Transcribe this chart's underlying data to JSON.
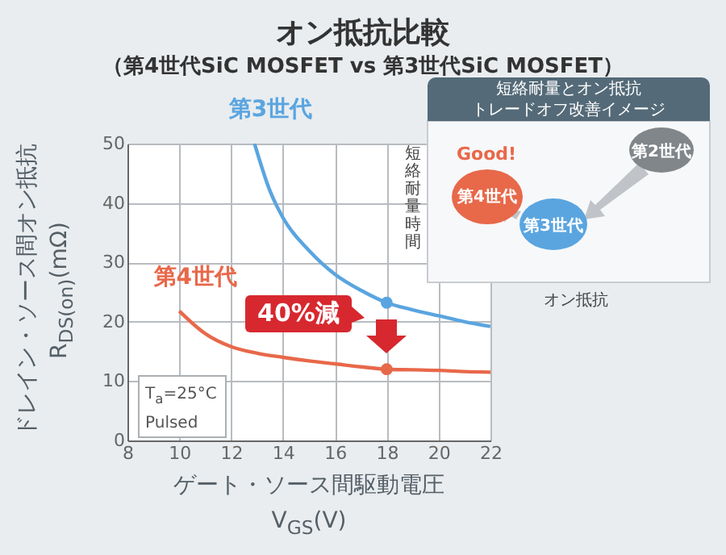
{
  "chart_data": {
    "type": "line",
    "title": "オン抵抗比較",
    "subtitle": "（第4世代SiC MOSFET vs 第3世代SiC MOSFET）",
    "xlabel": "ゲート・ソース間駆動電圧\nV$_{GS}$(V)",
    "ylabel": "ドレイン・ソース間オン抵抗\nR$_{DS(on)}$(mΩ)",
    "xlim": [
      8,
      22
    ],
    "xticks": [
      8,
      10,
      12,
      14,
      16,
      18,
      20,
      22
    ],
    "ylim": [
      0,
      50
    ],
    "yticks": [
      0,
      10,
      20,
      30,
      40,
      50
    ],
    "grid": true,
    "line_style": "solid",
    "series": [
      {
        "name": "第3世代",
        "color": "#5aa5e0",
        "x": [
          12.9,
          13.5,
          14,
          15,
          16,
          17,
          18,
          19,
          20,
          21,
          22
        ],
        "values": [
          50,
          42,
          37.5,
          32,
          28,
          25.3,
          23.2,
          22,
          21,
          20,
          19.2
        ]
      },
      {
        "name": "第4世代",
        "color": "#e8684a",
        "x": [
          10,
          11,
          12,
          13,
          14,
          15,
          16,
          17,
          18,
          19,
          20,
          21,
          22
        ],
        "values": [
          21.8,
          18,
          15.8,
          14.7,
          14,
          13.4,
          12.9,
          12.4,
          12,
          11.9,
          11.8,
          11.6,
          11.5
        ]
      },
      {
        "type": "scatter",
        "color": "#5aa5e0",
        "x": [
          18
        ],
        "values": [
          23.2
        ]
      },
      {
        "type": "scatter",
        "color": "#e8684a",
        "x": [
          18
        ],
        "values": [
          12
        ]
      }
    ],
    "annotations": [
      "短絡耐量とオン抵抗",
      "トレードオフ改善イメージ",
      "短絡耐量時間",
      "オン抵抗",
      "Good!",
      "第4世代",
      "第3世代",
      "第2世代",
      "40%減",
      "T$_{a}$=25°C\nPulsed"
    ]
  }
}
